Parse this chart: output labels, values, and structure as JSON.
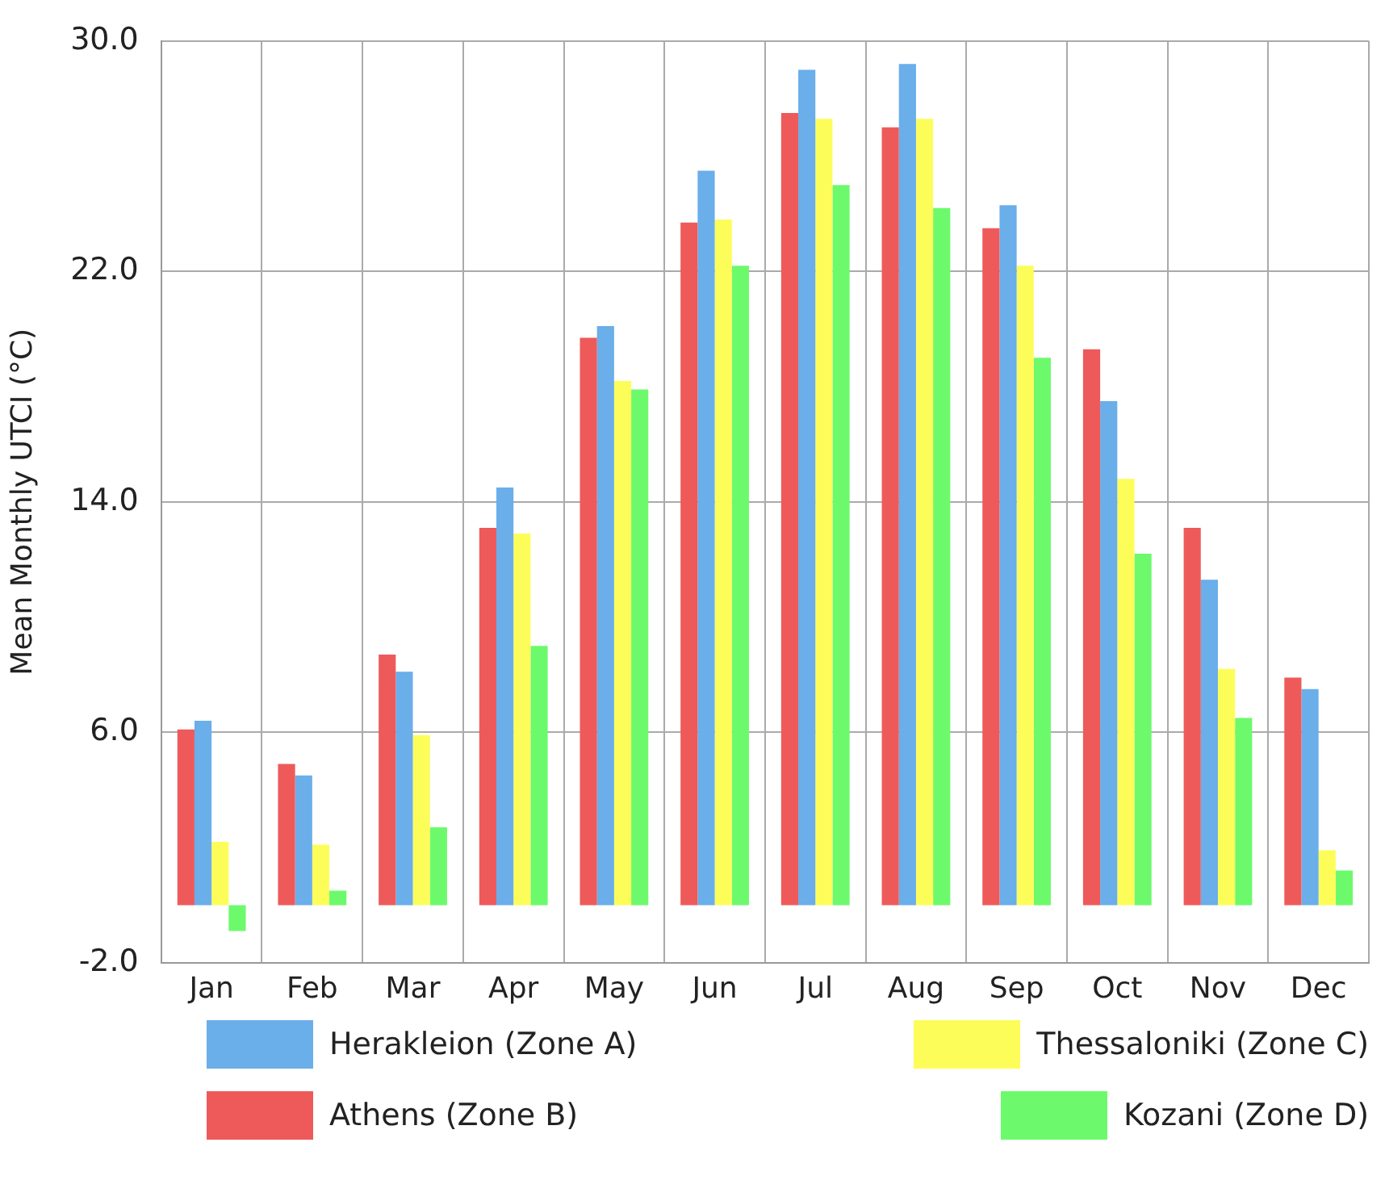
{
  "chart_data": {
    "type": "bar",
    "ylabel": "Mean Monthly UTCI (°C)",
    "categories": [
      "Jan",
      "Feb",
      "Mar",
      "Apr",
      "May",
      "Jun",
      "Jul",
      "Aug",
      "Sep",
      "Oct",
      "Nov",
      "Dec"
    ],
    "series": [
      {
        "name": "Athens (Zone B)",
        "color": "#ee5a5a",
        "values": [
          6.1,
          4.9,
          8.7,
          13.1,
          19.7,
          23.7,
          27.5,
          27.0,
          23.5,
          19.3,
          13.1,
          7.9
        ]
      },
      {
        "name": "Herakleion (Zone A)",
        "color": "#6aaeea",
        "values": [
          6.4,
          4.5,
          8.1,
          14.5,
          20.1,
          25.5,
          29.0,
          29.2,
          24.3,
          17.5,
          11.3,
          7.5
        ]
      },
      {
        "name": "Thessaloniki (Zone C)",
        "color": "#fdfd5a",
        "values": [
          2.2,
          2.1,
          5.9,
          12.9,
          18.2,
          23.8,
          27.3,
          27.3,
          22.2,
          14.8,
          8.2,
          1.9
        ]
      },
      {
        "name": "Kozani (Zone D)",
        "color": "#6cfa6c",
        "values": [
          -0.9,
          0.5,
          2.7,
          9.0,
          17.9,
          22.2,
          25.0,
          24.2,
          19.0,
          12.2,
          6.5,
          1.2
        ]
      }
    ],
    "ylim": [
      -2,
      30
    ],
    "yticks": [
      {
        "value": -2,
        "label": "-2.0"
      },
      {
        "value": 6,
        "label": "6.0"
      },
      {
        "value": 14,
        "label": "14.0"
      },
      {
        "value": 22,
        "label": "22.0"
      },
      {
        "value": 30,
        "label": "30.0"
      }
    ],
    "grid": true,
    "legend": "bottom"
  }
}
